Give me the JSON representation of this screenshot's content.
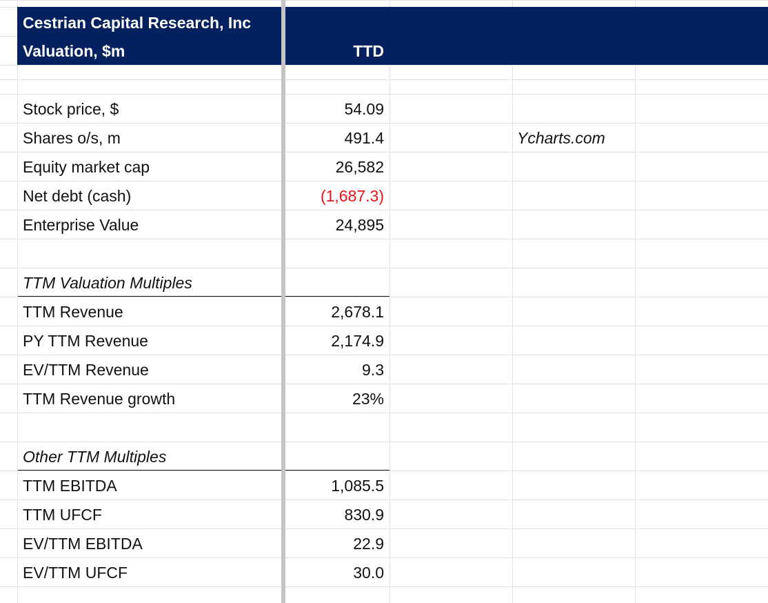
{
  "header": {
    "company": "Cestrian Capital Research, Inc",
    "subtitle": "Valuation, $m",
    "column": "TTD"
  },
  "sections": [
    {
      "rows": [
        {
          "label": "Stock price, $",
          "value": "54.09"
        },
        {
          "label": "Shares o/s, m",
          "value": "491.4",
          "note": "Ycharts.com"
        },
        {
          "label": "Equity market cap",
          "value": "26,582"
        },
        {
          "label": "Net debt (cash)",
          "value": "(1,687.3)",
          "color": "#e8141b"
        },
        {
          "label": "Enterprise Value",
          "value": "24,895"
        }
      ]
    },
    {
      "title": "TTM Valuation Multiples",
      "rows": [
        {
          "label": "TTM Revenue",
          "value": "2,678.1"
        },
        {
          "label": "PY TTM Revenue",
          "value": "2,174.9"
        },
        {
          "label": "EV/TTM Revenue",
          "value": "9.3"
        },
        {
          "label": "TTM Revenue growth",
          "value": "23%"
        }
      ]
    },
    {
      "title": "Other TTM Multiples",
      "rows": [
        {
          "label": "TTM EBITDA",
          "value": "1,085.5"
        },
        {
          "label": "TTM UFCF",
          "value": "830.9"
        },
        {
          "label": "EV/TTM EBITDA",
          "value": "22.9"
        },
        {
          "label": "EV/TTM UFCF",
          "value": "30.0"
        }
      ]
    }
  ]
}
